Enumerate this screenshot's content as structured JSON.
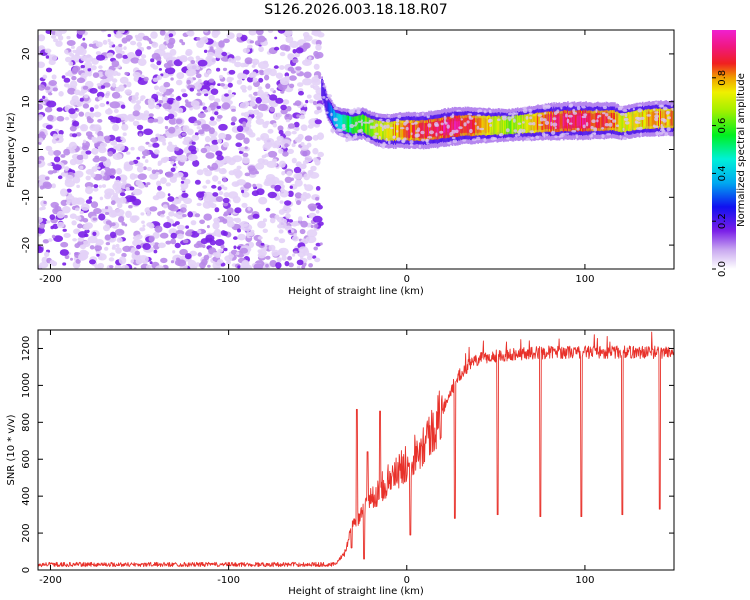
{
  "title": "S126.2026.003.18.18.R07",
  "chart_data": [
    {
      "type": "heatmap",
      "name": "frequency-spectrogram",
      "xlabel": "Height of straight line (km)",
      "ylabel": "Frequency (Hz)",
      "xlim": [
        -207,
        150
      ],
      "ylim": [
        -25,
        25
      ],
      "xticks": [
        -200,
        -100,
        0,
        100
      ],
      "yticks": [
        -20,
        -10,
        0,
        10,
        20
      ],
      "colorbar": {
        "label": "Normalized spectral amplitude",
        "range": [
          0,
          1
        ],
        "ticks": [
          0.0,
          0.2,
          0.4,
          0.6,
          0.8
        ]
      },
      "noise_region_x": [
        -207,
        -48
      ],
      "signal_ridge": {
        "x": [
          -48,
          -45,
          -40,
          -35,
          -30,
          -25,
          -20,
          -15,
          -10,
          -5,
          0,
          10,
          20,
          30,
          40,
          50,
          60,
          70,
          80,
          90,
          100,
          110,
          115,
          120,
          130,
          140,
          150
        ],
        "freq": [
          13,
          9,
          6,
          5.5,
          5,
          5.5,
          4.5,
          4,
          3.8,
          4,
          4,
          4,
          4.5,
          5,
          5,
          5,
          5.2,
          5.5,
          5.8,
          6,
          6,
          6,
          6.2,
          5.5,
          6.2,
          6.5,
          6.5
        ],
        "amplitude": [
          0.15,
          0.25,
          0.4,
          0.5,
          0.55,
          0.6,
          0.65,
          0.7,
          0.75,
          0.8,
          0.85,
          0.9,
          0.92,
          0.92,
          0.85,
          0.7,
          0.65,
          0.75,
          0.88,
          0.92,
          0.9,
          0.88,
          0.85,
          0.7,
          0.75,
          0.8,
          0.78
        ]
      }
    },
    {
      "type": "line",
      "name": "snr-trace",
      "xlabel": "Height of straight line (km)",
      "ylabel": "SNR (10 * v/v)",
      "xlim": [
        -207,
        150
      ],
      "ylim": [
        0,
        1300
      ],
      "xticks": [
        -200,
        -100,
        0,
        100
      ],
      "yticks": [
        0,
        200,
        400,
        600,
        800,
        1000,
        1200
      ],
      "color": "#e8312a",
      "envelope": {
        "x": [
          -207,
          -60,
          -40,
          -35,
          -30,
          -25,
          -20,
          -15,
          -10,
          -5,
          0,
          5,
          10,
          15,
          20,
          25,
          30,
          35,
          40,
          50,
          60,
          80,
          100,
          120,
          140,
          150
        ],
        "y": [
          30,
          30,
          30,
          90,
          250,
          330,
          380,
          440,
          490,
          530,
          580,
          640,
          700,
          760,
          860,
          980,
          1060,
          1110,
          1140,
          1160,
          1170,
          1180,
          1180,
          1180,
          1180,
          1180
        ]
      },
      "spikes": [
        {
          "x": -28,
          "y": 870
        },
        {
          "x": -22,
          "y": 640
        },
        {
          "x": -15,
          "y": 860
        }
      ],
      "dips": [
        {
          "x": -31,
          "y": 120
        },
        {
          "x": -24,
          "y": 60
        },
        {
          "x": 2,
          "y": 190
        },
        {
          "x": 27,
          "y": 280
        },
        {
          "x": 51,
          "y": 300
        },
        {
          "x": 75,
          "y": 290
        },
        {
          "x": 98,
          "y": 290
        },
        {
          "x": 121,
          "y": 300
        },
        {
          "x": 142,
          "y": 330
        }
      ]
    }
  ]
}
